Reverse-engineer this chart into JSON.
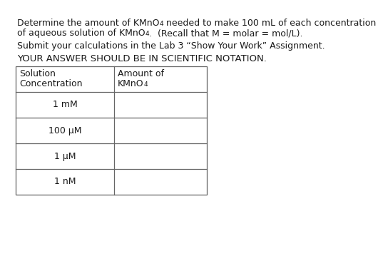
{
  "background_color": "#ffffff",
  "text_color": "#1a1a1a",
  "para1_line1_pre": "Determine the amount of KMnO",
  "para1_line1_post": " needed to make 100 mL of each concentration",
  "para1_line2_pre": "of aqueous solution of KMnO",
  "para1_line2_post": ".  (Recall that M = molar = mol/L).",
  "para2": "Submit your calculations in the Lab 3 “Show Your Work” Assignment.",
  "para3": "YOUR ANSWER SHOULD BE IN SCIENTIFIC NOTATION.",
  "rows": [
    "1 mM",
    "100 μM",
    "1 μM",
    "1 nM"
  ],
  "font_size": 9.0,
  "border_color": "#666666"
}
